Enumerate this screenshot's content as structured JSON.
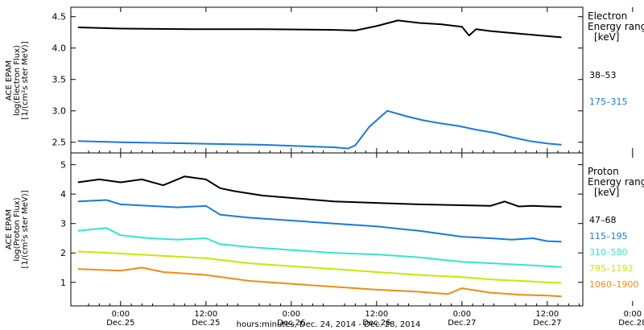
{
  "chart_data": [
    {
      "type": "line",
      "ylabel_lines": [
        "ACE EPAM",
        "log(Electron Flux)",
        "[1/(cm²s ster MeV)]"
      ],
      "yticks": [
        "2.5",
        "3.0",
        "3.5",
        "4.0",
        "4.5"
      ],
      "ylim": [
        2.33,
        4.65
      ],
      "xlim_hours": [
        -14,
        130
      ],
      "legend_title_lines": [
        "Electron",
        "Energy range",
        "[keV]"
      ],
      "series": [
        {
          "name": "38–53",
          "color": "#000000",
          "x_hours": [
            -12,
            0,
            20,
            40,
            60,
            66,
            72,
            78,
            84,
            90,
            96,
            98,
            100,
            104,
            112,
            120,
            124
          ],
          "y": [
            4.33,
            4.31,
            4.3,
            4.3,
            4.29,
            4.28,
            4.35,
            4.44,
            4.4,
            4.38,
            4.34,
            4.2,
            4.3,
            4.27,
            4.23,
            4.19,
            4.17
          ]
        },
        {
          "name": "175–315",
          "color": "#1a7adb",
          "x_hours": [
            -12,
            0,
            20,
            40,
            60,
            64,
            66,
            70,
            75,
            80,
            85,
            90,
            95,
            100,
            105,
            110,
            115,
            120,
            124
          ],
          "y": [
            2.52,
            2.5,
            2.48,
            2.46,
            2.42,
            2.4,
            2.45,
            2.75,
            3.0,
            2.92,
            2.85,
            2.8,
            2.76,
            2.7,
            2.65,
            2.58,
            2.52,
            2.48,
            2.46
          ]
        }
      ]
    },
    {
      "type": "line",
      "ylabel_lines": [
        "ACE EPAM",
        "log(Proton Flux)",
        "[1/(cm²s ster MeV)]"
      ],
      "yticks": [
        "1",
        "2",
        "3",
        "4",
        "5"
      ],
      "ylim": [
        0.2,
        5.4
      ],
      "xlim_hours": [
        -14,
        130
      ],
      "xticks": [
        {
          "time": "0:00",
          "date": "Dec.25"
        },
        {
          "time": "12:00",
          "date": "Dec.25"
        },
        {
          "time": "0:00",
          "date": "Dec.26"
        },
        {
          "time": "12:00",
          "date": "Dec.26"
        },
        {
          "time": "0:00",
          "date": "Dec.27"
        },
        {
          "time": "12:00",
          "date": "Dec.27"
        },
        {
          "time": "0:00",
          "date": "Dec.28"
        }
      ],
      "xticks_hours": [
        0,
        24,
        48,
        72,
        96,
        120,
        144
      ],
      "xlabel": "hours:minutes, Dec. 24, 2014 - Dec. 28, 2014",
      "legend_title_lines": [
        "Proton",
        "Energy range",
        "[keV]"
      ],
      "series": [
        {
          "name": "47–68",
          "color": "#000000",
          "x_hours": [
            -12,
            -6,
            0,
            6,
            12,
            18,
            24,
            28,
            32,
            40,
            50,
            60,
            72,
            84,
            96,
            104,
            108,
            112,
            116,
            120,
            124
          ],
          "y": [
            4.4,
            4.5,
            4.4,
            4.5,
            4.3,
            4.6,
            4.5,
            4.2,
            4.1,
            3.95,
            3.85,
            3.75,
            3.7,
            3.65,
            3.62,
            3.6,
            3.75,
            3.58,
            3.6,
            3.58,
            3.57
          ]
        },
        {
          "name": "115–195",
          "color": "#1a7adb",
          "x_hours": [
            -12,
            -4,
            0,
            8,
            16,
            24,
            28,
            36,
            48,
            60,
            72,
            84,
            96,
            104,
            110,
            116,
            120,
            124
          ],
          "y": [
            3.75,
            3.8,
            3.65,
            3.6,
            3.55,
            3.6,
            3.3,
            3.2,
            3.1,
            3.0,
            2.9,
            2.75,
            2.55,
            2.5,
            2.45,
            2.5,
            2.4,
            2.38
          ]
        },
        {
          "name": "310–580",
          "color": "#33e6cc",
          "x_hours": [
            -12,
            -4,
            0,
            8,
            16,
            24,
            28,
            36,
            48,
            60,
            72,
            84,
            96,
            104,
            112,
            120,
            124
          ],
          "y": [
            2.75,
            2.85,
            2.6,
            2.5,
            2.45,
            2.5,
            2.3,
            2.2,
            2.1,
            2.0,
            1.95,
            1.85,
            1.7,
            1.65,
            1.6,
            1.55,
            1.52
          ]
        },
        {
          "name": "795–1193",
          "color": "#c8e800",
          "x_hours": [
            -12,
            0,
            12,
            24,
            36,
            48,
            60,
            72,
            84,
            96,
            104,
            112,
            120,
            124
          ],
          "y": [
            2.05,
            1.98,
            1.9,
            1.82,
            1.65,
            1.55,
            1.45,
            1.35,
            1.25,
            1.18,
            1.1,
            1.05,
            1.0,
            0.98
          ]
        },
        {
          "name": "1060–1900",
          "color": "#f08c14",
          "x_hours": [
            -12,
            0,
            6,
            12,
            24,
            36,
            48,
            60,
            72,
            84,
            92,
            96,
            104,
            112,
            120,
            124
          ],
          "y": [
            1.45,
            1.4,
            1.5,
            1.35,
            1.25,
            1.05,
            0.95,
            0.85,
            0.75,
            0.68,
            0.6,
            0.8,
            0.65,
            0.58,
            0.55,
            0.52
          ]
        }
      ]
    }
  ]
}
